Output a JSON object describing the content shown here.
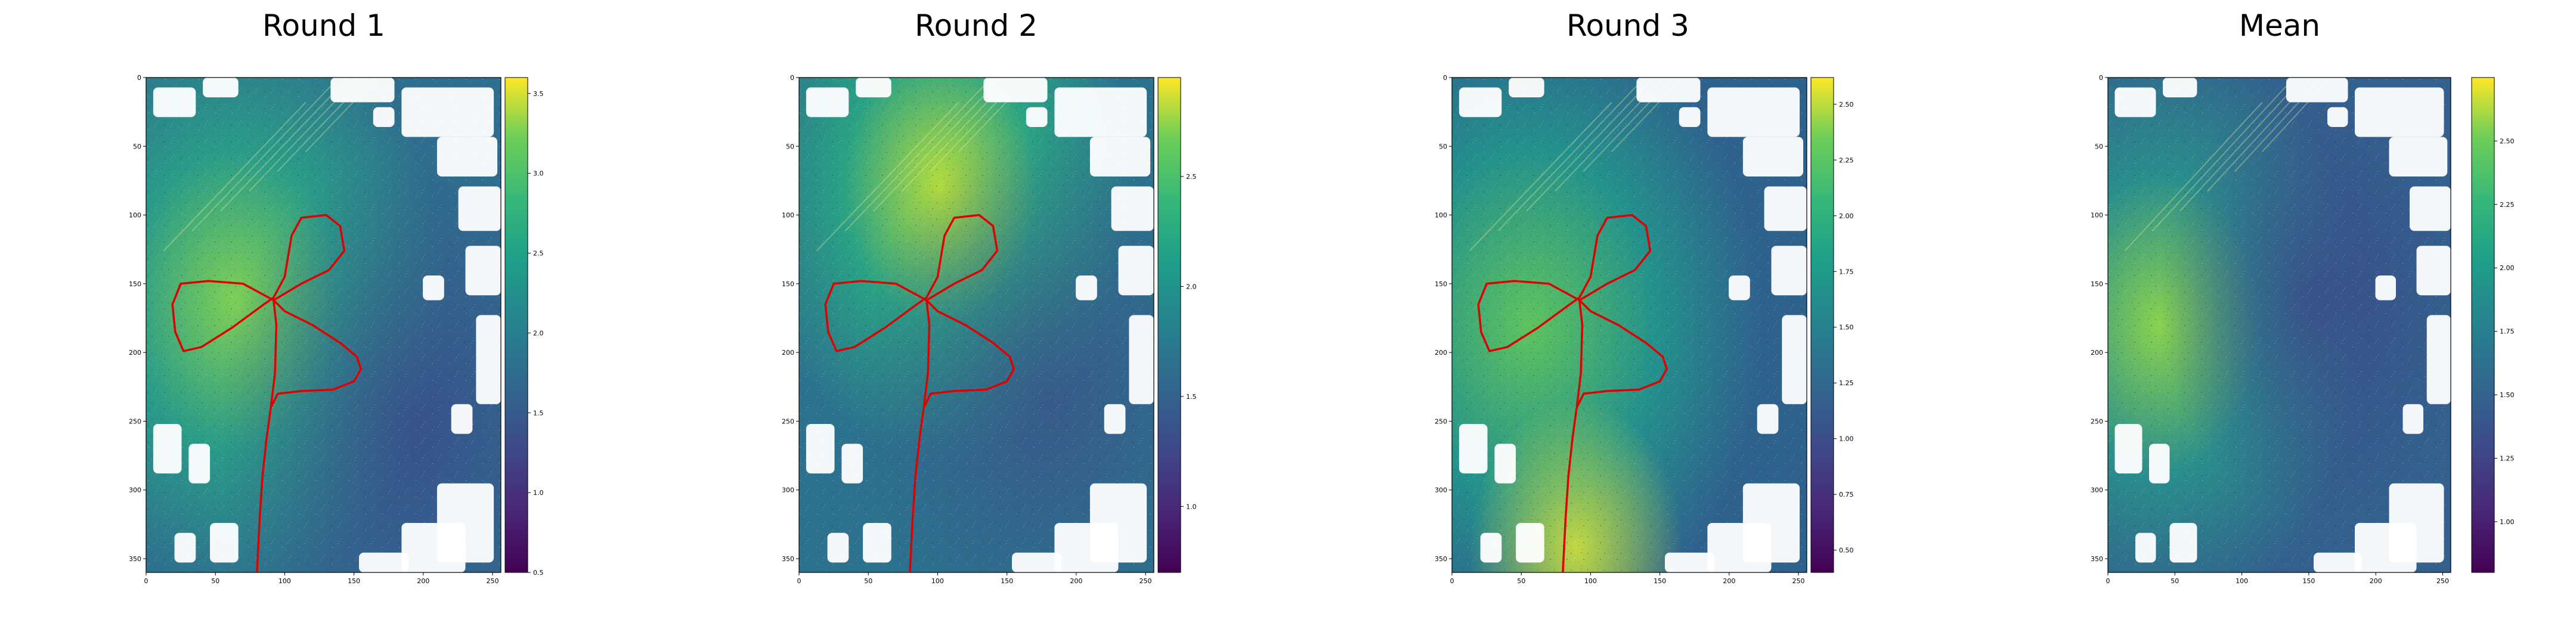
{
  "chart_data": [
    {
      "type": "heatmap",
      "title": "Round 1",
      "x_ticks": [
        0,
        50,
        100,
        150,
        200,
        250
      ],
      "y_ticks": [
        0,
        50,
        100,
        150,
        200,
        250,
        300,
        350
      ],
      "xlim": [
        0,
        256
      ],
      "ylim": [
        360,
        0
      ],
      "colormap": "viridis",
      "colorbar": {
        "min": 0.5,
        "max": 3.6,
        "ticks": [
          0.5,
          1.0,
          1.5,
          2.0,
          2.5,
          3.0,
          3.5
        ],
        "tick_labels": [
          "0.5",
          "1.0",
          "1.5",
          "2.0",
          "2.5",
          "3.0",
          "3.5"
        ]
      },
      "grid": false,
      "overlay_path_color": "#e00000"
    },
    {
      "type": "heatmap",
      "title": "Round 2",
      "x_ticks": [
        0,
        50,
        100,
        150,
        200,
        250
      ],
      "y_ticks": [
        0,
        50,
        100,
        150,
        200,
        250,
        300,
        350
      ],
      "xlim": [
        0,
        256
      ],
      "ylim": [
        360,
        0
      ],
      "colormap": "viridis",
      "colorbar": {
        "min": 0.7,
        "max": 2.95,
        "ticks": [
          1.0,
          1.5,
          2.0,
          2.5
        ],
        "tick_labels": [
          "1.0",
          "1.5",
          "2.0",
          "2.5"
        ]
      },
      "grid": false,
      "overlay_path_color": "#e00000"
    },
    {
      "type": "heatmap",
      "title": "Round 3",
      "x_ticks": [
        0,
        50,
        100,
        150,
        200,
        250
      ],
      "y_ticks": [
        0,
        50,
        100,
        150,
        200,
        250,
        300,
        350
      ],
      "xlim": [
        0,
        256
      ],
      "ylim": [
        360,
        0
      ],
      "colormap": "viridis",
      "colorbar": {
        "min": 0.4,
        "max": 2.62,
        "ticks": [
          0.5,
          0.75,
          1.0,
          1.25,
          1.5,
          1.75,
          2.0,
          2.25,
          2.5
        ],
        "tick_labels": [
          "0.50",
          "0.75",
          "1.00",
          "1.25",
          "1.50",
          "1.75",
          "2.00",
          "2.25",
          "2.50"
        ]
      },
      "grid": false,
      "overlay_path_color": "#e00000"
    },
    {
      "type": "heatmap",
      "title": "Mean",
      "x_ticks": [
        0,
        50,
        100,
        150,
        200,
        250
      ],
      "y_ticks": [
        0,
        50,
        100,
        150,
        200,
        250,
        300,
        350
      ],
      "xlim": [
        0,
        256
      ],
      "ylim": [
        360,
        0
      ],
      "colormap": "viridis",
      "colorbar": {
        "min": 0.8,
        "max": 2.75,
        "ticks": [
          1.0,
          1.25,
          1.5,
          1.75,
          2.0,
          2.25,
          2.5
        ],
        "tick_labels": [
          "1.00",
          "1.25",
          "1.50",
          "1.75",
          "2.00",
          "2.25",
          "2.50"
        ]
      },
      "grid": false
    }
  ]
}
